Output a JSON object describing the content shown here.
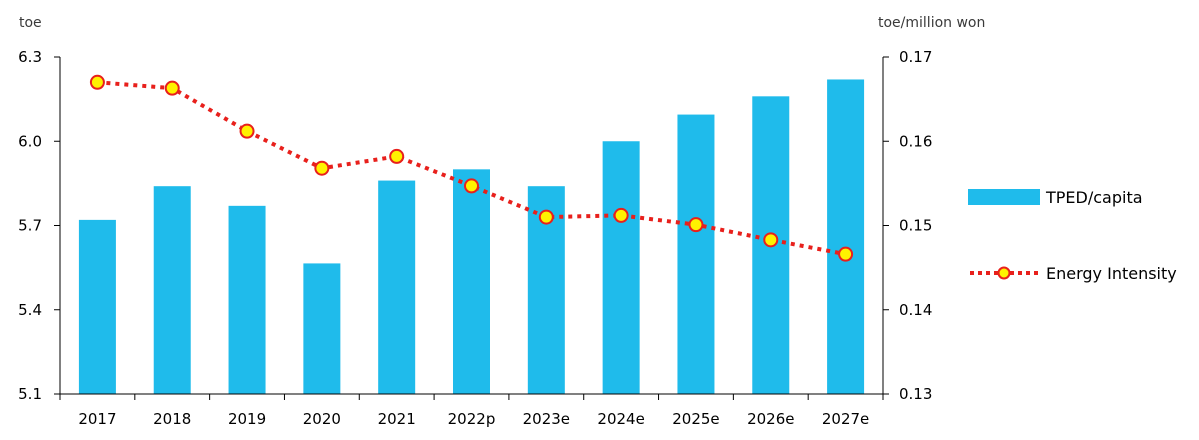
{
  "chart_data": {
    "type": "bar+line",
    "categories": [
      "2017",
      "2018",
      "2019",
      "2020",
      "2021",
      "2022p",
      "2023e",
      "2024e",
      "2025e",
      "2026e",
      "2027e"
    ],
    "series": [
      {
        "name": "TPED/capita",
        "type": "bar",
        "axis": "left",
        "color": "#1FBBEB",
        "values": [
          5.72,
          5.84,
          5.77,
          5.565,
          5.86,
          5.9,
          5.84,
          6.0,
          6.095,
          6.16,
          6.22
        ]
      },
      {
        "name": "Energy Intensity",
        "type": "line",
        "axis": "right",
        "line_color": "#E8201C",
        "line_style": "dotted",
        "marker_fill": "#FFF200",
        "marker_edge": "#E8201C",
        "values": [
          0.167,
          0.1663,
          0.1612,
          0.1568,
          0.1582,
          0.1547,
          0.151,
          0.1512,
          0.1501,
          0.1483,
          0.1466
        ]
      }
    ],
    "y_left": {
      "label": "toe",
      "range": [
        5.1,
        6.3
      ],
      "ticks": [
        "5.1",
        "5.4",
        "5.7",
        "6.0",
        "6.3"
      ]
    },
    "y_right": {
      "label": "toe/million won",
      "range": [
        0.13,
        0.17
      ],
      "ticks": [
        "0.13",
        "0.14",
        "0.15",
        "0.16",
        "0.17"
      ]
    },
    "grid": false,
    "legend_position": "right"
  }
}
